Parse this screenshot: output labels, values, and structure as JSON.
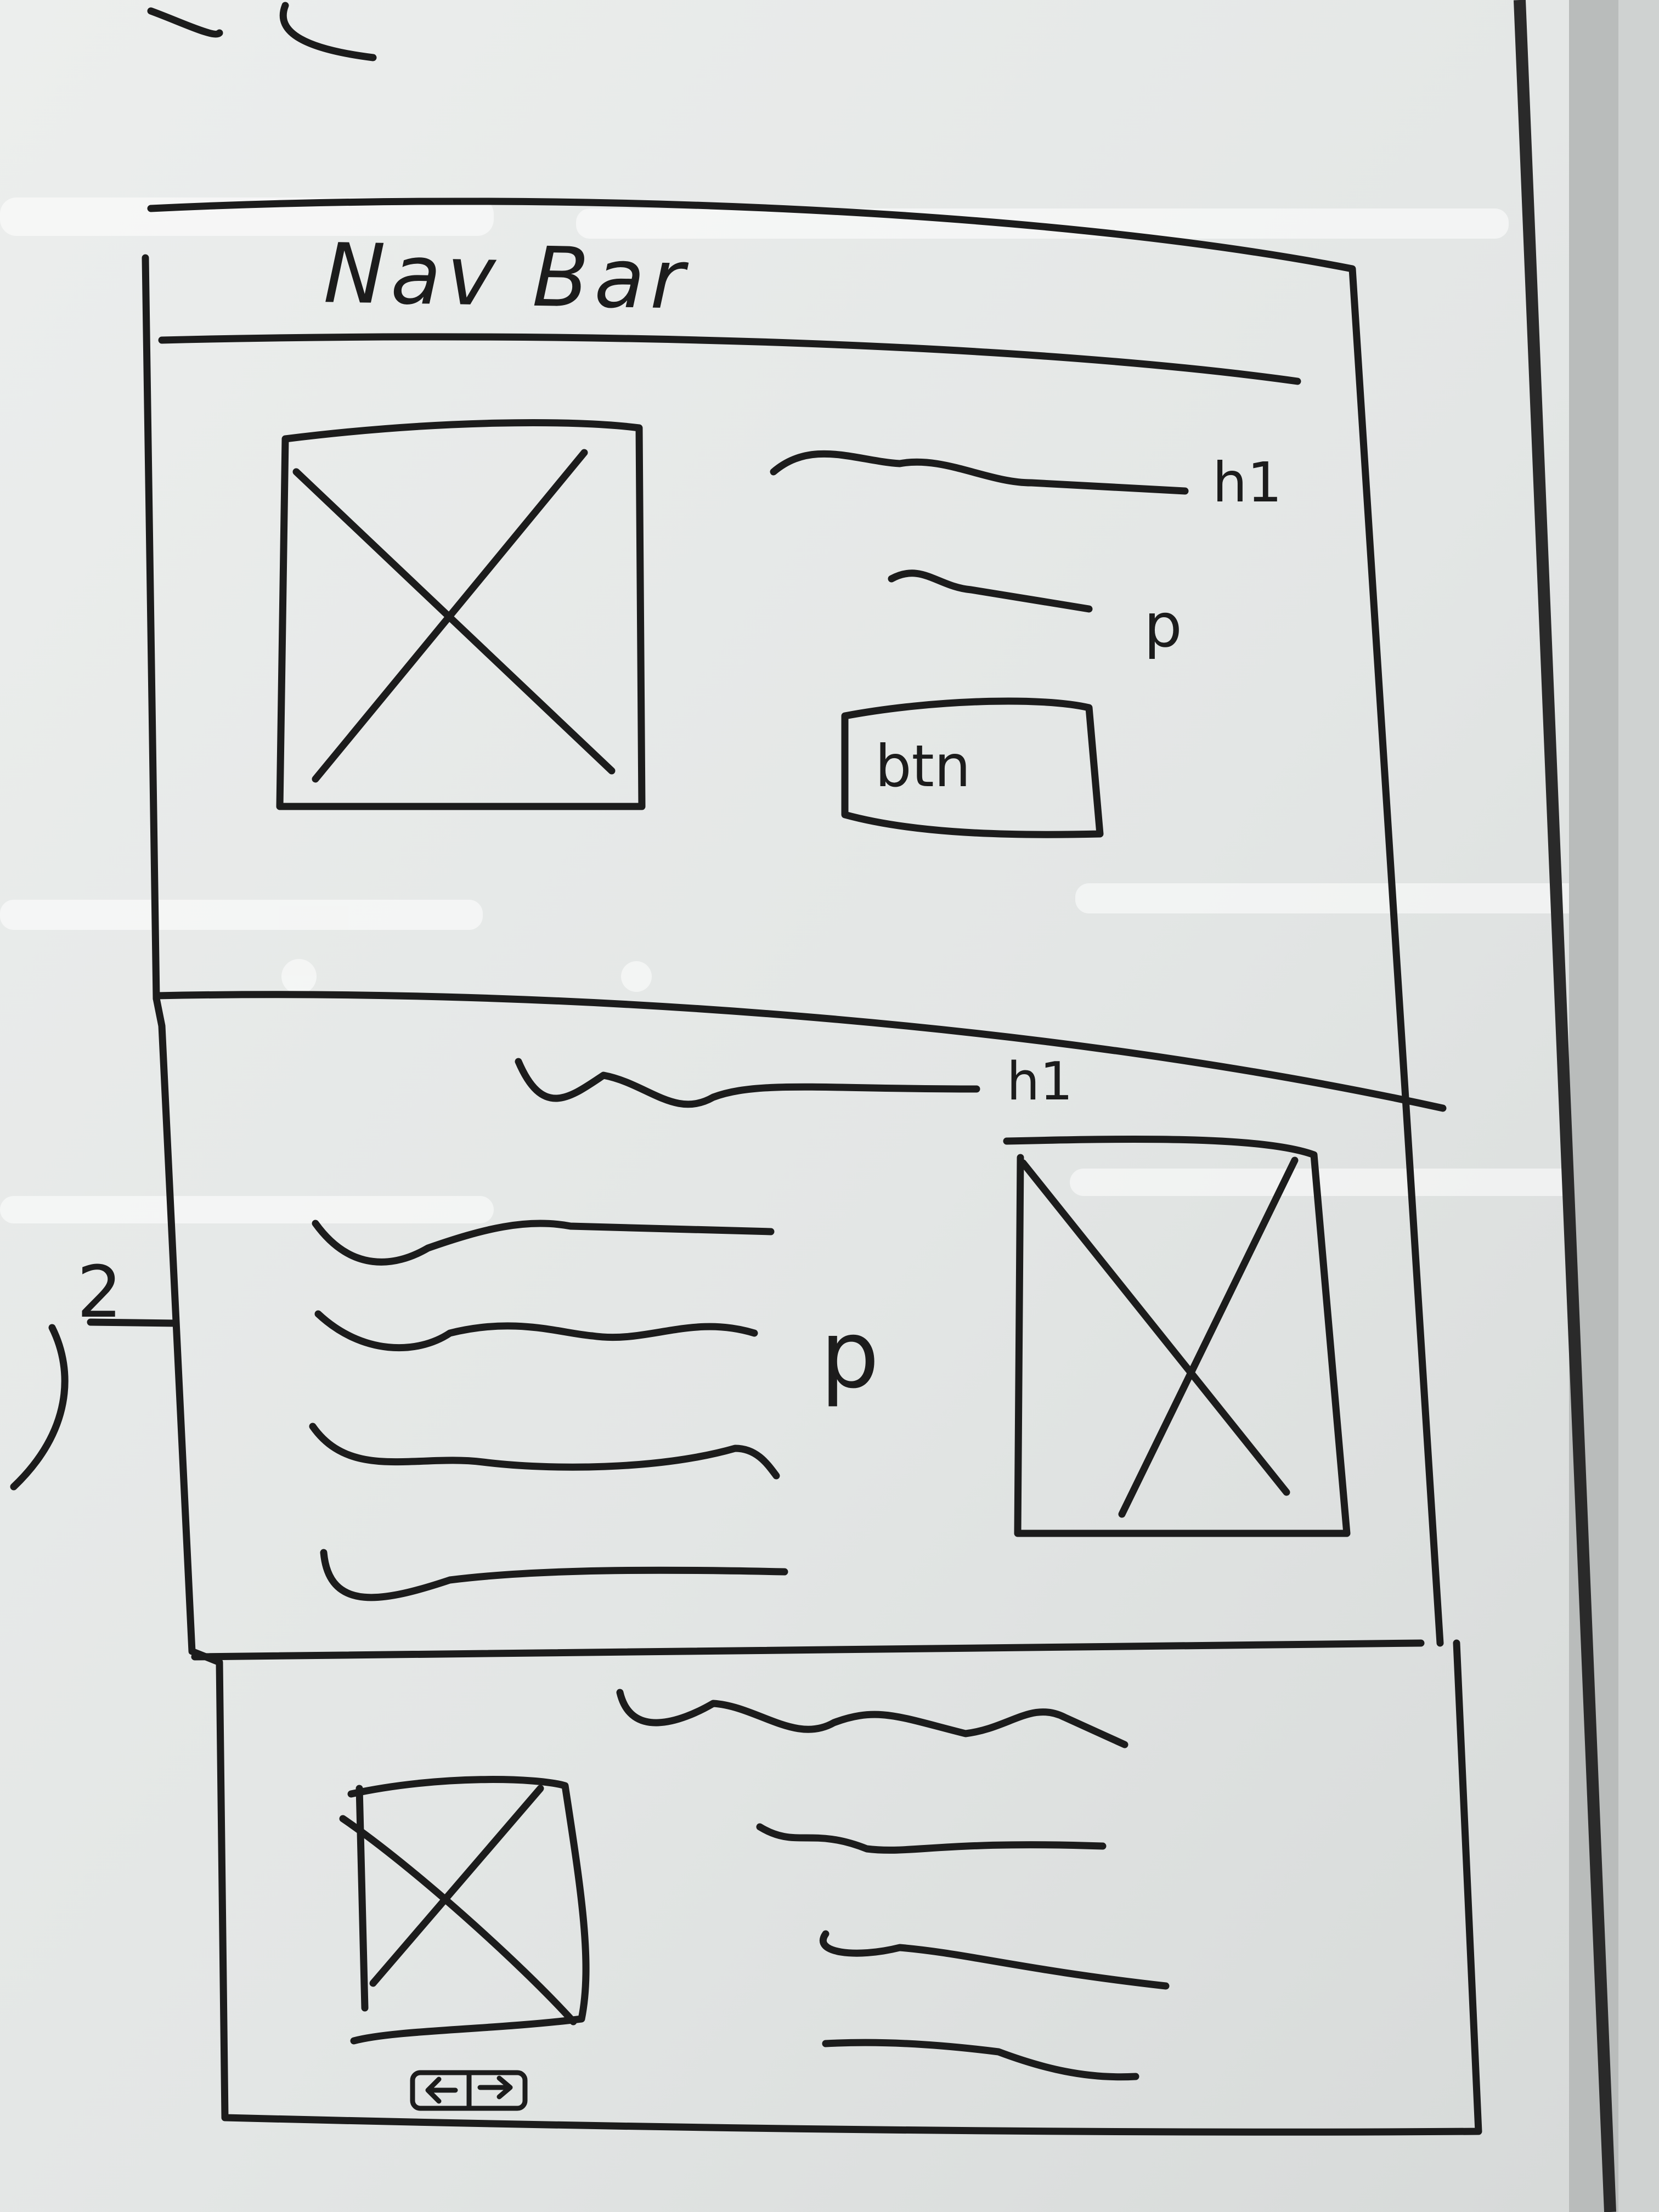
{
  "board": {
    "background": "#e6e8e7",
    "ink": "#1c1c1c"
  },
  "nav_bar": {
    "label": "Nav Bar"
  },
  "hero": {
    "heading_label": "h1",
    "paragraph_label": "p",
    "button_label": "btn",
    "image": "image-placeholder-icon"
  },
  "feature": {
    "heading_label": "h1",
    "paragraph_label": "p",
    "image": "image-placeholder-icon"
  },
  "carousel": {
    "image": "image-placeholder-icon",
    "controls": [
      "left-arrow-icon",
      "right-arrow-icon"
    ]
  },
  "margin_note": {
    "text": "2"
  }
}
